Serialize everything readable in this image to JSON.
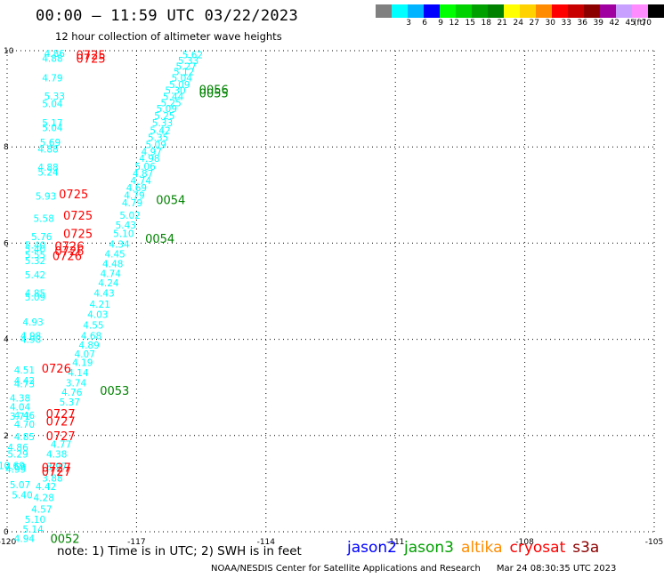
{
  "title": "00:00 — 11:59 UTC 03/22/2023",
  "subtitle": "12 hour collection of altimeter wave heights",
  "legend": {
    "unit": "(ft)",
    "bins": [
      {
        "label": "",
        "color": "#808080"
      },
      {
        "label": "3",
        "color": "#00ffff"
      },
      {
        "label": "6",
        "color": "#00b4ff"
      },
      {
        "label": "9",
        "color": "#0000ff"
      },
      {
        "label": "12",
        "color": "#00ff00"
      },
      {
        "label": "15",
        "color": "#00d200"
      },
      {
        "label": "18",
        "color": "#00a000"
      },
      {
        "label": "21",
        "color": "#008200"
      },
      {
        "label": "24",
        "color": "#ffff00"
      },
      {
        "label": "27",
        "color": "#ffd200"
      },
      {
        "label": "30",
        "color": "#ff8c00"
      },
      {
        "label": "33",
        "color": "#ff0000"
      },
      {
        "label": "36",
        "color": "#c80000"
      },
      {
        "label": "39",
        "color": "#8c0000"
      },
      {
        "label": "42",
        "color": "#a000a0"
      },
      {
        "label": "45",
        "color": "#c8a0ff"
      },
      {
        "label": "70",
        "color": "#ff8cff"
      },
      {
        "label": "",
        "color": "#000000"
      }
    ]
  },
  "map": {
    "lon_range": [
      -120,
      -105
    ],
    "lat_range": [
      0,
      10
    ],
    "x_ticks": [
      "-120",
      "-117",
      "-114",
      "-111",
      "-108",
      "-105"
    ],
    "x_tick_values": [
      -120,
      -117,
      -114,
      -111,
      -108,
      -105
    ],
    "y_ticks": [
      "0",
      "2",
      "4",
      "6",
      "8",
      "10"
    ],
    "y_tick_values": [
      0,
      2,
      4,
      6,
      8,
      10
    ]
  },
  "wave_heights": [
    {
      "v": "5.62",
      "lon": -115.7,
      "lat": 9.92
    },
    {
      "v": "5.33",
      "lon": -115.8,
      "lat": 9.8
    },
    {
      "v": "5.27",
      "lon": -115.85,
      "lat": 9.68
    },
    {
      "v": "5.12",
      "lon": -115.9,
      "lat": 9.57
    },
    {
      "v": "5.04",
      "lon": -115.95,
      "lat": 9.44
    },
    {
      "v": "5.09",
      "lon": -116.0,
      "lat": 9.3
    },
    {
      "v": "5.30",
      "lon": -116.1,
      "lat": 9.18
    },
    {
      "v": "5.44",
      "lon": -116.15,
      "lat": 9.05
    },
    {
      "v": "5.25",
      "lon": -116.2,
      "lat": 8.92
    },
    {
      "v": "5.09",
      "lon": -116.3,
      "lat": 8.8
    },
    {
      "v": "5.25",
      "lon": -116.35,
      "lat": 8.65
    },
    {
      "v": "5.33",
      "lon": -116.4,
      "lat": 8.5
    },
    {
      "v": "5.42",
      "lon": -116.45,
      "lat": 8.35
    },
    {
      "v": "5.35",
      "lon": -116.5,
      "lat": 8.2
    },
    {
      "v": "5.09",
      "lon": -116.55,
      "lat": 8.05
    },
    {
      "v": "4.97",
      "lon": -116.65,
      "lat": 7.9
    },
    {
      "v": "4.98",
      "lon": -116.7,
      "lat": 7.76
    },
    {
      "v": "5.06",
      "lon": -116.8,
      "lat": 7.6
    },
    {
      "v": "4.87",
      "lon": -116.85,
      "lat": 7.45
    },
    {
      "v": "4.74",
      "lon": -116.9,
      "lat": 7.3
    },
    {
      "v": "4.69",
      "lon": -117.0,
      "lat": 7.15
    },
    {
      "v": "4.79",
      "lon": -117.05,
      "lat": 7.0
    },
    {
      "v": "4.79",
      "lon": -117.1,
      "lat": 6.84
    },
    {
      "v": "5.02",
      "lon": -117.15,
      "lat": 6.58
    },
    {
      "v": "5.43",
      "lon": -117.25,
      "lat": 6.38
    },
    {
      "v": "5.10",
      "lon": -117.3,
      "lat": 6.2
    },
    {
      "v": "4.34",
      "lon": -117.4,
      "lat": 5.98
    },
    {
      "v": "4.45",
      "lon": -117.5,
      "lat": 5.78
    },
    {
      "v": "4.48",
      "lon": -117.55,
      "lat": 5.57
    },
    {
      "v": "4.74",
      "lon": -117.6,
      "lat": 5.37
    },
    {
      "v": "4.24",
      "lon": -117.65,
      "lat": 5.18
    },
    {
      "v": "4.43",
      "lon": -117.75,
      "lat": 4.96
    },
    {
      "v": "4.21",
      "lon": -117.85,
      "lat": 4.73
    },
    {
      "v": "4.03",
      "lon": -117.9,
      "lat": 4.52
    },
    {
      "v": "4.55",
      "lon": -118.0,
      "lat": 4.3
    },
    {
      "v": "4.68",
      "lon": -118.05,
      "lat": 4.08
    },
    {
      "v": "4.89",
      "lon": -118.1,
      "lat": 3.88
    },
    {
      "v": "4.07",
      "lon": -118.2,
      "lat": 3.7
    },
    {
      "v": "4.19",
      "lon": -118.25,
      "lat": 3.52
    },
    {
      "v": "4.14",
      "lon": -118.35,
      "lat": 3.31
    },
    {
      "v": "3.74",
      "lon": -118.4,
      "lat": 3.1
    },
    {
      "v": "4.76",
      "lon": -118.5,
      "lat": 2.9
    },
    {
      "v": "5.37",
      "lon": -118.55,
      "lat": 2.7
    },
    {
      "v": "4.46",
      "lon": -119.6,
      "lat": 2.42
    },
    {
      "v": "4.70",
      "lon": -119.6,
      "lat": 2.24
    },
    {
      "v": "4.85",
      "lon": -119.6,
      "lat": 1.98
    },
    {
      "v": "4.77",
      "lon": -118.75,
      "lat": 1.82
    },
    {
      "v": "4.86",
      "lon": -119.75,
      "lat": 1.76
    },
    {
      "v": "5.29",
      "lon": -119.75,
      "lat": 1.62
    },
    {
      "v": "4.38",
      "lon": -118.85,
      "lat": 1.62
    },
    {
      "v": "4.59",
      "lon": -119.8,
      "lat": 1.35
    },
    {
      "v": "3.97",
      "lon": -118.85,
      "lat": 1.36
    },
    {
      "v": "3.88",
      "lon": -118.95,
      "lat": 1.12
    },
    {
      "v": "5.07",
      "lon": -119.7,
      "lat": 0.98
    },
    {
      "v": "4.42",
      "lon": -119.1,
      "lat": 0.94
    },
    {
      "v": "5.40",
      "lon": -119.65,
      "lat": 0.77
    },
    {
      "v": "4.28",
      "lon": -119.15,
      "lat": 0.71
    },
    {
      "v": "4.57",
      "lon": -119.2,
      "lat": 0.47
    },
    {
      "v": "5.10",
      "lon": -119.35,
      "lat": 0.26
    },
    {
      "v": "5.14",
      "lon": -119.4,
      "lat": 0.06
    },
    {
      "v": "4.94",
      "lon": -119.6,
      "lat": -0.14
    },
    {
      "v": "4.86",
      "lon": -118.9,
      "lat": 9.94
    },
    {
      "v": "4.88",
      "lon": -118.95,
      "lat": 9.84
    },
    {
      "v": "4.79",
      "lon": -118.95,
      "lat": 9.44
    },
    {
      "v": "5.33",
      "lon": -118.9,
      "lat": 9.06
    },
    {
      "v": "5.04",
      "lon": -118.95,
      "lat": 8.9
    },
    {
      "v": "5.17",
      "lon": -118.95,
      "lat": 8.5
    },
    {
      "v": "5.04",
      "lon": -118.95,
      "lat": 8.4
    },
    {
      "v": "5.69",
      "lon": -119.0,
      "lat": 8.1
    },
    {
      "v": "4.88",
      "lon": -119.05,
      "lat": 7.96
    },
    {
      "v": "4.88",
      "lon": -119.05,
      "lat": 7.58
    },
    {
      "v": "5.24",
      "lon": -119.05,
      "lat": 7.48
    },
    {
      "v": "5.93",
      "lon": -119.1,
      "lat": 6.98
    },
    {
      "v": "5.58",
      "lon": -119.15,
      "lat": 6.52
    },
    {
      "v": "5.76",
      "lon": -119.2,
      "lat": 6.14
    },
    {
      "v": "5.40",
      "lon": -119.35,
      "lat": 5.96
    },
    {
      "v": "5.40",
      "lon": -119.35,
      "lat": 5.88
    },
    {
      "v": "5.55",
      "lon": -119.35,
      "lat": 5.76
    },
    {
      "v": "5.32",
      "lon": -119.35,
      "lat": 5.64
    },
    {
      "v": "5.42",
      "lon": -119.35,
      "lat": 5.34
    },
    {
      "v": "4.85",
      "lon": -119.35,
      "lat": 4.96
    },
    {
      "v": "5.09",
      "lon": -119.35,
      "lat": 4.88
    },
    {
      "v": "4.93",
      "lon": -119.4,
      "lat": 4.36
    },
    {
      "v": "4.98",
      "lon": -119.45,
      "lat": 4.08
    },
    {
      "v": "4.98",
      "lon": -119.45,
      "lat": 4.0
    },
    {
      "v": "4.51",
      "lon": -119.6,
      "lat": 3.36
    },
    {
      "v": "4.42",
      "lon": -119.6,
      "lat": 3.14
    },
    {
      "v": "4.73",
      "lon": -119.6,
      "lat": 3.08
    },
    {
      "v": "4.38",
      "lon": -119.7,
      "lat": 2.78
    },
    {
      "v": "4.04",
      "lon": -119.7,
      "lat": 2.6
    },
    {
      "v": "3.71",
      "lon": -119.7,
      "lat": 2.4
    },
    {
      "v": "4.99",
      "lon": -119.8,
      "lat": 1.3
    },
    {
      "v": "10.69",
      "lon": -119.9,
      "lat": 1.38
    }
  ],
  "track_labels": [
    {
      "text": "0725",
      "lon": -118.4,
      "lat": 9.92,
      "color": "#ff0000"
    },
    {
      "text": "0725",
      "lon": -118.4,
      "lat": 9.84,
      "color": "#ff0000"
    },
    {
      "text": "0056",
      "lon": -115.55,
      "lat": 9.2,
      "color": "#008200"
    },
    {
      "text": "0055",
      "lon": -115.55,
      "lat": 9.12,
      "color": "#008200"
    },
    {
      "text": "0054",
      "lon": -116.55,
      "lat": 6.9,
      "color": "#008200"
    },
    {
      "text": "0054",
      "lon": -116.8,
      "lat": 6.1,
      "color": "#008200"
    },
    {
      "text": "0725",
      "lon": -118.8,
      "lat": 7.02,
      "color": "#ff0000"
    },
    {
      "text": "0725",
      "lon": -118.7,
      "lat": 6.58,
      "color": "#ff0000"
    },
    {
      "text": "0725",
      "lon": -118.7,
      "lat": 6.2,
      "color": "#ff0000"
    },
    {
      "text": "0726",
      "lon": -118.9,
      "lat": 5.94,
      "color": "#ff0000"
    },
    {
      "text": "0726",
      "lon": -118.9,
      "lat": 5.84,
      "color": "#ff0000"
    },
    {
      "text": "0726",
      "lon": -118.95,
      "lat": 5.74,
      "color": "#ff0000"
    },
    {
      "text": "0726",
      "lon": -119.2,
      "lat": 3.4,
      "color": "#ff0000"
    },
    {
      "text": "0053",
      "lon": -117.85,
      "lat": 2.94,
      "color": "#008200"
    },
    {
      "text": "0727",
      "lon": -119.1,
      "lat": 2.46,
      "color": "#ff0000"
    },
    {
      "text": "0727",
      "lon": -119.1,
      "lat": 2.3,
      "color": "#ff0000"
    },
    {
      "text": "0727",
      "lon": -119.1,
      "lat": 2.0,
      "color": "#ff0000"
    },
    {
      "text": "0727",
      "lon": -119.2,
      "lat": 1.34,
      "color": "#ff0000"
    },
    {
      "text": "0727",
      "lon": -119.2,
      "lat": 1.26,
      "color": "#ff0000"
    },
    {
      "text": "0052",
      "lon": -119.0,
      "lat": -0.14,
      "color": "#008200"
    }
  ],
  "note": "note:  1) Time is in UTC; 2) SWH is in feet",
  "satellites": [
    {
      "name": "jason2",
      "color": "#0000ff"
    },
    {
      "name": "jason3",
      "color": "#00a000"
    },
    {
      "name": "altika",
      "color": "#ff8c00"
    },
    {
      "name": "cryosat",
      "color": "#ff0000"
    },
    {
      "name": "s3a",
      "color": "#8c0000"
    }
  ],
  "credit": "NOAA/NESDIS Center for Satellite Applications and Research",
  "timestamp": "Mar 24 08:30:35 UTC 2023"
}
